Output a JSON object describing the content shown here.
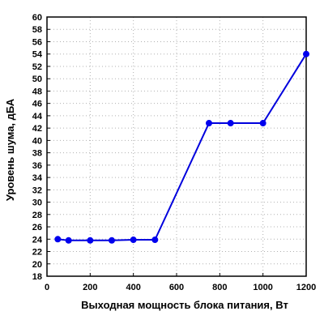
{
  "chart_data": {
    "type": "line",
    "title": "",
    "xlabel": "Выходная мощность блока питания, Вт",
    "ylabel": "Уровень шума, дБА",
    "xlim": [
      0,
      1200
    ],
    "ylim": [
      18,
      60
    ],
    "xticks": [
      0,
      200,
      400,
      600,
      800,
      1000,
      1200
    ],
    "yticks": [
      18,
      20,
      22,
      24,
      26,
      28,
      30,
      32,
      34,
      36,
      38,
      40,
      42,
      44,
      46,
      48,
      50,
      52,
      54,
      56,
      58,
      60
    ],
    "grid": true,
    "series": [
      {
        "x": [
          50,
          100,
          200,
          300,
          400,
          500,
          750,
          850,
          1000,
          1200
        ],
        "y": [
          24.0,
          23.8,
          23.8,
          23.8,
          23.9,
          23.9,
          42.8,
          42.8,
          42.8,
          54.0
        ]
      }
    ],
    "colors": {
      "series": "#0000ee",
      "line": "#0000dd",
      "grid": "#b0b0b0"
    }
  }
}
